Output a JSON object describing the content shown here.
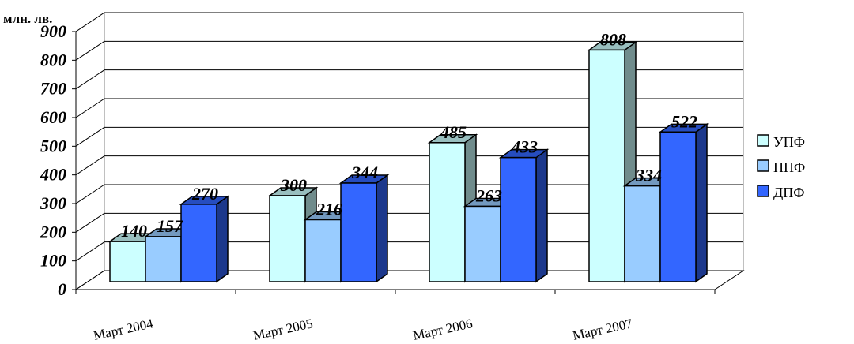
{
  "chart_data": {
    "type": "bar",
    "unit_label": "млн. лв.",
    "categories": [
      "Март 2004",
      "Март 2005",
      "Март 2006",
      "Март 2007"
    ],
    "series": [
      {
        "name": "УПФ",
        "values": [
          140,
          300,
          485,
          808
        ],
        "color": "#ccffff"
      },
      {
        "name": "ППФ",
        "values": [
          157,
          216,
          263,
          334
        ],
        "color": "#99ccff"
      },
      {
        "name": "ДПФ",
        "values": [
          270,
          344,
          433,
          522
        ],
        "color": "#3366ff"
      }
    ],
    "ylim": [
      0,
      900
    ],
    "yticks": [
      "0",
      "100",
      "200",
      "300",
      "400",
      "500",
      "600",
      "700",
      "800",
      "900"
    ],
    "grid": true,
    "legend_position": "right",
    "style": "3d-clustered-column"
  }
}
